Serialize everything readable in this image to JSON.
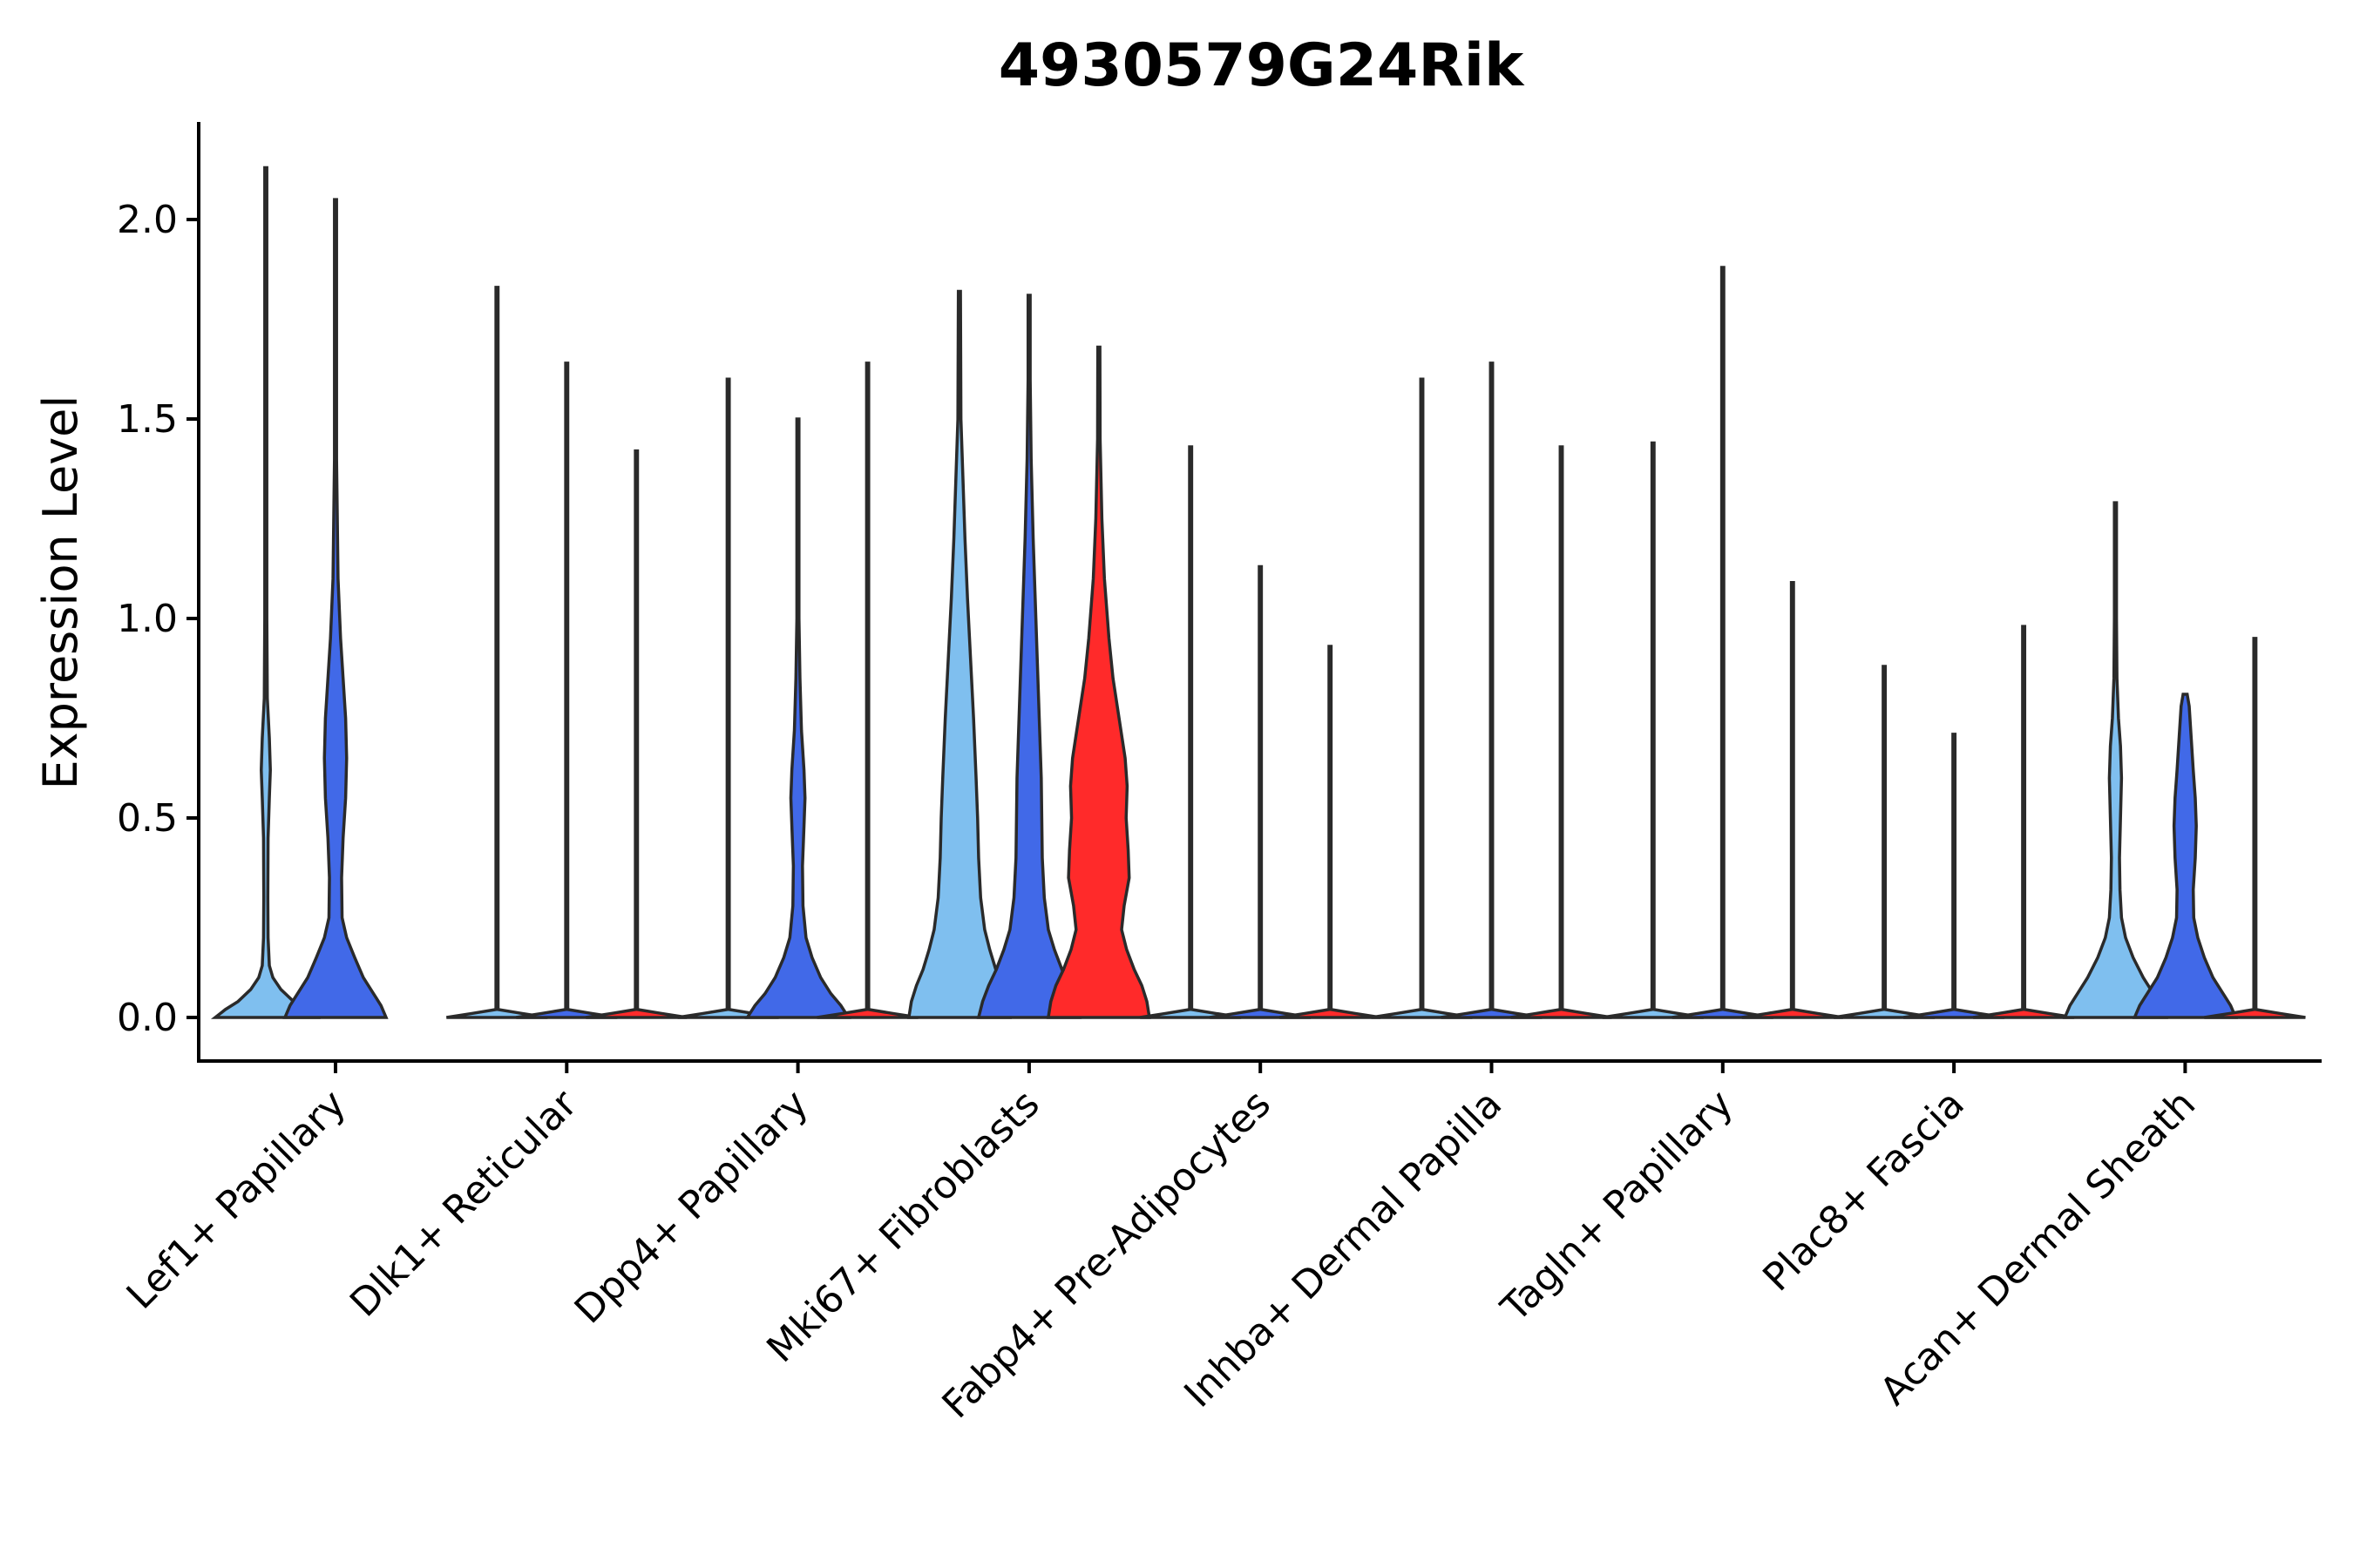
{
  "chart_data": {
    "type": "violin",
    "title": "4930579G24Rik",
    "xlabel": "",
    "ylabel": "Expression Level",
    "ylim": [
      -0.1,
      2.24
    ],
    "yticks": [
      "0.0",
      "0.5",
      "1.0",
      "1.5",
      "2.0"
    ],
    "grid": false,
    "legend": "none",
    "categories": [
      "Lef1+ Papillary",
      "Dlk1+ Reticular",
      "Dpp4+ Papillary",
      "Mki67+ Fibroblasts",
      "Fabp4+ Pre-Adipocytes",
      "Inhba+ Dermal Papilla",
      "Tagln+ Papillary",
      "Plac8+ Fascia",
      "Acan+ Dermal Sheath"
    ],
    "colors": {
      "light_blue": "#7fbfef",
      "blue": "#4169e8",
      "red": "#ff2a2a"
    },
    "violins": [
      {
        "group": 0,
        "slot": 0,
        "max": 2.13,
        "color": "#7fbfef",
        "profile": [
          [
            0,
            1.0
          ],
          [
            0.02,
            0.8
          ],
          [
            0.04,
            0.55
          ],
          [
            0.07,
            0.3
          ],
          [
            0.1,
            0.14
          ],
          [
            0.13,
            0.07
          ],
          [
            0.2,
            0.045
          ],
          [
            0.3,
            0.04
          ],
          [
            0.45,
            0.045
          ],
          [
            0.55,
            0.07
          ],
          [
            0.62,
            0.09
          ],
          [
            0.7,
            0.07
          ],
          [
            0.8,
            0.03
          ],
          [
            1.0,
            0.015
          ],
          [
            1.3,
            0.008
          ],
          [
            2.13,
            0.004
          ]
        ]
      },
      {
        "group": 0,
        "slot": 1,
        "max": 2.05,
        "color": "#4169e8",
        "profile": [
          [
            0,
            1.0
          ],
          [
            0.03,
            0.9
          ],
          [
            0.06,
            0.75
          ],
          [
            0.1,
            0.55
          ],
          [
            0.15,
            0.38
          ],
          [
            0.2,
            0.22
          ],
          [
            0.25,
            0.13
          ],
          [
            0.35,
            0.12
          ],
          [
            0.45,
            0.15
          ],
          [
            0.55,
            0.2
          ],
          [
            0.65,
            0.22
          ],
          [
            0.75,
            0.2
          ],
          [
            0.85,
            0.15
          ],
          [
            0.95,
            0.1
          ],
          [
            1.1,
            0.05
          ],
          [
            1.4,
            0.02
          ],
          [
            2.05,
            0.005
          ]
        ]
      },
      {
        "group": 1,
        "slot": 0,
        "max": 1.83,
        "color": "#7fbfef",
        "profile": [
          [
            0,
            1.0
          ],
          [
            0.01,
            0.5
          ],
          [
            0.02,
            0.02
          ],
          [
            1.83,
            0.01
          ]
        ]
      },
      {
        "group": 1,
        "slot": 1,
        "max": 1.64,
        "color": "#4169e8",
        "profile": [
          [
            0,
            1.0
          ],
          [
            0.01,
            0.5
          ],
          [
            0.02,
            0.02
          ],
          [
            1.64,
            0.01
          ]
        ]
      },
      {
        "group": 1,
        "slot": 2,
        "max": 1.42,
        "color": "#ff2a2a",
        "profile": [
          [
            0,
            1.0
          ],
          [
            0.01,
            0.5
          ],
          [
            0.02,
            0.02
          ],
          [
            1.42,
            0.01
          ]
        ]
      },
      {
        "group": 2,
        "slot": 0,
        "max": 1.6,
        "color": "#7fbfef",
        "profile": [
          [
            0,
            1.0
          ],
          [
            0.01,
            0.5
          ],
          [
            0.02,
            0.02
          ],
          [
            1.6,
            0.01
          ]
        ]
      },
      {
        "group": 2,
        "slot": 1,
        "max": 1.5,
        "color": "#4169e8",
        "profile": [
          [
            0,
            1.0
          ],
          [
            0.03,
            0.85
          ],
          [
            0.06,
            0.65
          ],
          [
            0.1,
            0.45
          ],
          [
            0.15,
            0.28
          ],
          [
            0.2,
            0.16
          ],
          [
            0.28,
            0.1
          ],
          [
            0.38,
            0.09
          ],
          [
            0.48,
            0.12
          ],
          [
            0.55,
            0.14
          ],
          [
            0.62,
            0.12
          ],
          [
            0.72,
            0.07
          ],
          [
            0.85,
            0.04
          ],
          [
            1.0,
            0.02
          ],
          [
            1.5,
            0.005
          ]
        ]
      },
      {
        "group": 2,
        "slot": 2,
        "max": 1.64,
        "color": "#ff2a2a",
        "profile": [
          [
            0,
            1.0
          ],
          [
            0.01,
            0.5
          ],
          [
            0.02,
            0.02
          ],
          [
            1.64,
            0.01
          ]
        ]
      },
      {
        "group": 3,
        "slot": 0,
        "max": 1.82,
        "color": "#7fbfef",
        "profile": [
          [
            0,
            1.0
          ],
          [
            0.04,
            0.95
          ],
          [
            0.08,
            0.85
          ],
          [
            0.12,
            0.72
          ],
          [
            0.17,
            0.6
          ],
          [
            0.22,
            0.5
          ],
          [
            0.3,
            0.42
          ],
          [
            0.4,
            0.38
          ],
          [
            0.5,
            0.36
          ],
          [
            0.6,
            0.33
          ],
          [
            0.75,
            0.28
          ],
          [
            0.9,
            0.22
          ],
          [
            1.05,
            0.16
          ],
          [
            1.2,
            0.11
          ],
          [
            1.35,
            0.07
          ],
          [
            1.5,
            0.03
          ],
          [
            1.82,
            0.005
          ]
        ]
      },
      {
        "group": 3,
        "slot": 1,
        "max": 1.81,
        "color": "#4169e8",
        "profile": [
          [
            0,
            1.0
          ],
          [
            0.04,
            0.92
          ],
          [
            0.08,
            0.8
          ],
          [
            0.12,
            0.65
          ],
          [
            0.17,
            0.5
          ],
          [
            0.22,
            0.38
          ],
          [
            0.3,
            0.3
          ],
          [
            0.4,
            0.26
          ],
          [
            0.5,
            0.25
          ],
          [
            0.6,
            0.24
          ],
          [
            0.75,
            0.2
          ],
          [
            0.9,
            0.16
          ],
          [
            1.05,
            0.12
          ],
          [
            1.2,
            0.08
          ],
          [
            1.4,
            0.04
          ],
          [
            1.6,
            0.015
          ],
          [
            1.81,
            0.005
          ]
        ]
      },
      {
        "group": 3,
        "slot": 2,
        "max": 1.68,
        "color": "#ff2a2a",
        "profile": [
          [
            0,
            1.0
          ],
          [
            0.04,
            0.95
          ],
          [
            0.08,
            0.85
          ],
          [
            0.12,
            0.7
          ],
          [
            0.17,
            0.55
          ],
          [
            0.22,
            0.45
          ],
          [
            0.28,
            0.5
          ],
          [
            0.35,
            0.6
          ],
          [
            0.42,
            0.58
          ],
          [
            0.5,
            0.54
          ],
          [
            0.58,
            0.56
          ],
          [
            0.65,
            0.52
          ],
          [
            0.75,
            0.4
          ],
          [
            0.85,
            0.28
          ],
          [
            0.95,
            0.2
          ],
          [
            1.1,
            0.11
          ],
          [
            1.25,
            0.06
          ],
          [
            1.45,
            0.025
          ],
          [
            1.68,
            0.005
          ]
        ]
      },
      {
        "group": 4,
        "slot": 0,
        "max": 1.43,
        "color": "#7fbfef",
        "profile": [
          [
            0,
            1.0
          ],
          [
            0.01,
            0.5
          ],
          [
            0.02,
            0.02
          ],
          [
            1.43,
            0.01
          ]
        ]
      },
      {
        "group": 4,
        "slot": 1,
        "max": 1.13,
        "color": "#4169e8",
        "profile": [
          [
            0,
            1.0
          ],
          [
            0.01,
            0.5
          ],
          [
            0.02,
            0.02
          ],
          [
            1.13,
            0.01
          ]
        ]
      },
      {
        "group": 4,
        "slot": 2,
        "max": 0.93,
        "color": "#ff2a2a",
        "profile": [
          [
            0,
            1.0
          ],
          [
            0.01,
            0.5
          ],
          [
            0.02,
            0.02
          ],
          [
            0.93,
            0.01
          ]
        ]
      },
      {
        "group": 5,
        "slot": 0,
        "max": 1.6,
        "color": "#7fbfef",
        "profile": [
          [
            0,
            1.0
          ],
          [
            0.01,
            0.5
          ],
          [
            0.02,
            0.02
          ],
          [
            1.6,
            0.01
          ]
        ]
      },
      {
        "group": 5,
        "slot": 1,
        "max": 1.64,
        "color": "#4169e8",
        "profile": [
          [
            0,
            1.0
          ],
          [
            0.01,
            0.5
          ],
          [
            0.02,
            0.02
          ],
          [
            1.64,
            0.01
          ]
        ]
      },
      {
        "group": 5,
        "slot": 2,
        "max": 1.43,
        "color": "#ff2a2a",
        "profile": [
          [
            0,
            1.0
          ],
          [
            0.01,
            0.5
          ],
          [
            0.02,
            0.02
          ],
          [
            1.43,
            0.01
          ]
        ]
      },
      {
        "group": 6,
        "slot": 0,
        "max": 1.44,
        "color": "#7fbfef",
        "profile": [
          [
            0,
            1.0
          ],
          [
            0.01,
            0.5
          ],
          [
            0.02,
            0.02
          ],
          [
            1.44,
            0.01
          ]
        ]
      },
      {
        "group": 6,
        "slot": 1,
        "max": 1.88,
        "color": "#4169e8",
        "profile": [
          [
            0,
            1.0
          ],
          [
            0.01,
            0.5
          ],
          [
            0.02,
            0.02
          ],
          [
            1.88,
            0.01
          ]
        ]
      },
      {
        "group": 6,
        "slot": 2,
        "max": 1.09,
        "color": "#ff2a2a",
        "profile": [
          [
            0,
            1.0
          ],
          [
            0.01,
            0.5
          ],
          [
            0.02,
            0.02
          ],
          [
            1.09,
            0.01
          ]
        ]
      },
      {
        "group": 7,
        "slot": 0,
        "max": 0.88,
        "color": "#7fbfef",
        "profile": [
          [
            0,
            1.0
          ],
          [
            0.01,
            0.5
          ],
          [
            0.02,
            0.02
          ],
          [
            0.88,
            0.01
          ]
        ]
      },
      {
        "group": 7,
        "slot": 1,
        "max": 0.71,
        "color": "#4169e8",
        "profile": [
          [
            0,
            1.0
          ],
          [
            0.01,
            0.5
          ],
          [
            0.02,
            0.02
          ],
          [
            0.71,
            0.01
          ]
        ]
      },
      {
        "group": 7,
        "slot": 2,
        "max": 0.98,
        "color": "#ff2a2a",
        "profile": [
          [
            0,
            1.0
          ],
          [
            0.01,
            0.5
          ],
          [
            0.02,
            0.02
          ],
          [
            0.98,
            0.01
          ]
        ]
      },
      {
        "group": 8,
        "slot": 0,
        "max": 1.29,
        "color": "#7fbfef",
        "profile": [
          [
            0,
            1.0
          ],
          [
            0.03,
            0.9
          ],
          [
            0.06,
            0.75
          ],
          [
            0.1,
            0.55
          ],
          [
            0.15,
            0.35
          ],
          [
            0.2,
            0.2
          ],
          [
            0.25,
            0.12
          ],
          [
            0.32,
            0.09
          ],
          [
            0.4,
            0.08
          ],
          [
            0.5,
            0.1
          ],
          [
            0.6,
            0.12
          ],
          [
            0.68,
            0.1
          ],
          [
            0.75,
            0.06
          ],
          [
            0.85,
            0.03
          ],
          [
            1.0,
            0.015
          ],
          [
            1.29,
            0.004
          ]
        ]
      },
      {
        "group": 8,
        "slot": 1,
        "max": 0.81,
        "color": "#4169e8",
        "profile": [
          [
            0,
            1.0
          ],
          [
            0.03,
            0.9
          ],
          [
            0.06,
            0.75
          ],
          [
            0.1,
            0.55
          ],
          [
            0.15,
            0.38
          ],
          [
            0.2,
            0.25
          ],
          [
            0.25,
            0.17
          ],
          [
            0.32,
            0.16
          ],
          [
            0.4,
            0.2
          ],
          [
            0.48,
            0.22
          ],
          [
            0.55,
            0.2
          ],
          [
            0.62,
            0.16
          ],
          [
            0.7,
            0.12
          ],
          [
            0.78,
            0.08
          ],
          [
            0.81,
            0.04
          ]
        ]
      },
      {
        "group": 8,
        "slot": 2,
        "max": 0.95,
        "color": "#ff2a2a",
        "profile": [
          [
            0,
            1.0
          ],
          [
            0.01,
            0.5
          ],
          [
            0.02,
            0.02
          ],
          [
            0.95,
            0.01
          ]
        ]
      }
    ]
  }
}
